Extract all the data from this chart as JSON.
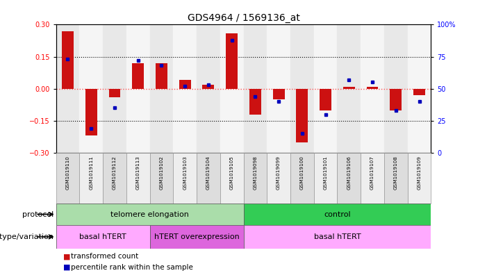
{
  "title": "GDS4964 / 1569136_at",
  "samples": [
    "GSM1019110",
    "GSM1019111",
    "GSM1019112",
    "GSM1019113",
    "GSM1019102",
    "GSM1019103",
    "GSM1019104",
    "GSM1019105",
    "GSM1019098",
    "GSM1019099",
    "GSM1019100",
    "GSM1019101",
    "GSM1019106",
    "GSM1019107",
    "GSM1019108",
    "GSM1019109"
  ],
  "red_values": [
    0.27,
    -0.22,
    -0.04,
    0.12,
    0.12,
    0.04,
    0.02,
    0.26,
    -0.12,
    -0.05,
    -0.25,
    -0.1,
    0.01,
    0.01,
    -0.1,
    -0.03
  ],
  "blue_values": [
    73,
    19,
    35,
    72,
    68,
    52,
    53,
    88,
    44,
    40,
    15,
    30,
    57,
    55,
    33,
    40
  ],
  "protocol_groups": [
    {
      "label": "telomere elongation",
      "start": 0,
      "end": 8,
      "color": "#aaddaa"
    },
    {
      "label": "control",
      "start": 8,
      "end": 16,
      "color": "#33cc55"
    }
  ],
  "genotype_groups": [
    {
      "label": "basal hTERT",
      "start": 0,
      "end": 4,
      "color": "#ffaaff"
    },
    {
      "label": "hTERT overexpression",
      "start": 4,
      "end": 8,
      "color": "#dd66dd"
    },
    {
      "label": "basal hTERT",
      "start": 8,
      "end": 16,
      "color": "#ffaaff"
    }
  ],
  "ylim": [
    -0.3,
    0.3
  ],
  "y2lim": [
    0,
    100
  ],
  "yticks_left": [
    -0.3,
    -0.15,
    0.0,
    0.15,
    0.3
  ],
  "yticks_right": [
    0,
    25,
    50,
    75,
    100
  ],
  "hlines": [
    0.15,
    -0.15
  ],
  "bar_color": "#cc1111",
  "dot_color": "#0000bb",
  "zero_line_color": "#ff5555",
  "cell_bg": "#dddddd",
  "bar_width": 0.5
}
